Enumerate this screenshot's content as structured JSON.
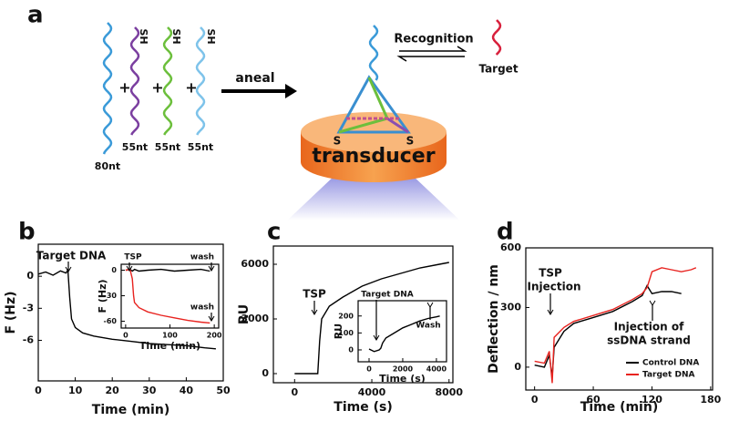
{
  "diagram": {
    "panel": "a",
    "strands": [
      "80nt",
      "55nt",
      "55nt",
      "55nt"
    ],
    "thiols": [
      "SH",
      "SH",
      "SH"
    ],
    "plus": [
      "+",
      "+",
      "+"
    ],
    "arrow": "aneal",
    "recognition": "Recognition",
    "target": "Target",
    "transducer": "transducer",
    "sulfur": [
      "S",
      "S"
    ]
  },
  "chart_data": [
    {
      "panel": "b",
      "type": "line",
      "xlabel": "Time (min)",
      "ylabel": "F (Hz)",
      "x": [
        0,
        2,
        4,
        6,
        7.5,
        8,
        8.5,
        9,
        10,
        12,
        15,
        20,
        25,
        30,
        35,
        40,
        45,
        48
      ],
      "series": [
        {
          "color": "#000000",
          "values": [
            0.2,
            0.4,
            0.1,
            0.5,
            0.3,
            0.6,
            -2,
            -4,
            -4.8,
            -5.3,
            -5.6,
            -5.9,
            -6.1,
            -6.3,
            -6.4,
            -6.5,
            -6.7,
            -6.8
          ]
        }
      ],
      "xlim": [
        0,
        50
      ],
      "xticks": [
        0,
        10,
        20,
        30,
        40,
        50
      ],
      "ylim": [
        -9.8,
        3
      ],
      "yticks": [
        0,
        -3,
        -6
      ],
      "annotations": [
        "Target DNA"
      ],
      "inset": {
        "type": "line",
        "xlabel": "Time (min)",
        "ylabel": "F (Hz)",
        "x": [
          0,
          10,
          15,
          18,
          20,
          30,
          50,
          80,
          110,
          140,
          170,
          190
        ],
        "series": [
          {
            "color": "#000000",
            "values": [
              0,
              1,
              -1,
              0,
              1,
              -1,
              0,
              1,
              -1,
              0,
              1,
              -1
            ]
          },
          {
            "color": "#e8231f",
            "values": [
              0,
              1,
              -10,
              -30,
              -38,
              -44,
              -49,
              -53,
              -56,
              -59,
              -61,
              -62
            ]
          }
        ],
        "xlim": [
          -10,
          210
        ],
        "xticks": [
          0,
          100,
          200
        ],
        "ylim": [
          -68,
          7
        ],
        "yticks": [
          0,
          -30,
          -60
        ],
        "annotations": [
          "TSP",
          "wash",
          "wash"
        ]
      }
    },
    {
      "panel": "c",
      "type": "line",
      "xlabel": "Time (s)",
      "ylabel": "RU",
      "x": [
        0,
        500,
        1000,
        1200,
        1300,
        1400,
        1800,
        2500,
        3500,
        4500,
        5500,
        6500,
        7500,
        8000
      ],
      "series": [
        {
          "color": "#000000",
          "values": [
            0,
            0,
            0,
            0,
            1800,
            3000,
            3700,
            4200,
            4800,
            5200,
            5500,
            5800,
            6000,
            6100
          ]
        }
      ],
      "xlim": [
        -1100,
        8200
      ],
      "xticks": [
        0,
        4000,
        8000
      ],
      "ylim": [
        -500,
        7000
      ],
      "yticks": [
        0,
        3000,
        6000
      ],
      "annotations": [
        "TSP"
      ],
      "inset": {
        "type": "line",
        "xlabel": "Time (s)",
        "ylabel": "RU",
        "x": [
          0,
          300,
          600,
          700,
          800,
          1000,
          1500,
          2000,
          2500,
          3000,
          3500,
          4000,
          4200
        ],
        "series": [
          {
            "color": "#000000",
            "values": [
              5,
              -10,
              0,
              10,
              40,
              70,
              100,
              130,
              150,
              170,
              185,
              195,
              200
            ]
          }
        ],
        "xlim": [
          -650,
          4600
        ],
        "xticks": [
          0,
          2000,
          4000
        ],
        "ylim": [
          -70,
          290
        ],
        "yticks": [
          0,
          100,
          200
        ],
        "annotations": [
          "Target DNA",
          "Wash"
        ]
      }
    },
    {
      "panel": "d",
      "type": "line",
      "xlabel": "Time (min)",
      "ylabel": "Deflection / nm",
      "legend": "lower right",
      "x": [
        0,
        10,
        15,
        18,
        20,
        30,
        40,
        60,
        80,
        100,
        110,
        115,
        120,
        130,
        140,
        150,
        160,
        165
      ],
      "series": [
        {
          "name": "Control DNA",
          "color": "#000000",
          "values": [
            10,
            0,
            60,
            -50,
            100,
            180,
            220,
            250,
            280,
            330,
            360,
            410,
            370,
            380,
            380,
            370,
            null,
            null
          ]
        },
        {
          "name": "Target DNA",
          "color": "#e8231f",
          "values": [
            30,
            20,
            80,
            -80,
            150,
            200,
            230,
            260,
            290,
            340,
            370,
            400,
            480,
            500,
            490,
            480,
            490,
            500
          ]
        }
      ],
      "xlim": [
        -9,
        182
      ],
      "xticks": [
        0,
        60,
        120,
        180
      ],
      "ylim": [
        -115,
        600
      ],
      "yticks": [
        0,
        300,
        600
      ],
      "annotations": [
        "TSP",
        "Injection",
        "Injection of",
        "ssDNA strand"
      ]
    }
  ]
}
